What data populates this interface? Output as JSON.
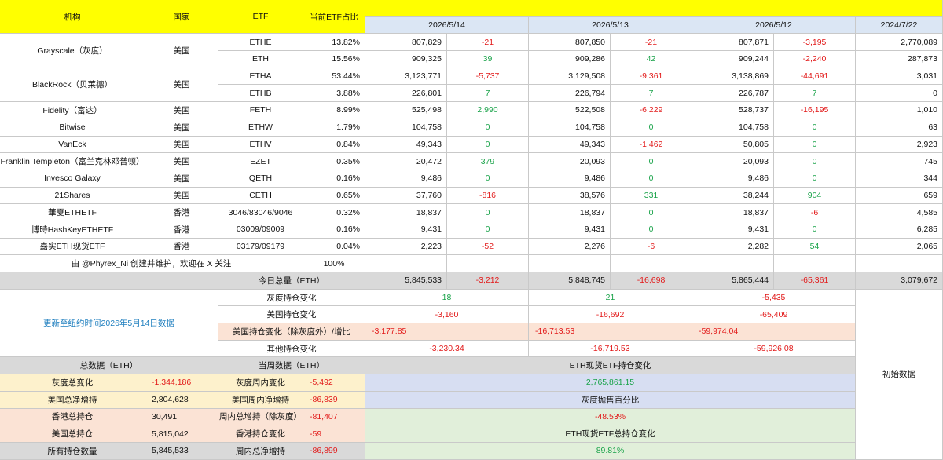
{
  "header": {
    "institution": "机构",
    "country": "国家",
    "etf": "ETF",
    "share": "当前ETF占比",
    "dates": [
      "2026/5/14",
      "2026/5/13",
      "2026/5/12",
      "2024/7/22"
    ]
  },
  "rows": [
    {
      "inst": "Grayscale（灰度）",
      "country": "美国",
      "etf": "ETHE",
      "share": "13.82%",
      "v1": "807,829",
      "c1": "-21",
      "v2": "807,850",
      "c2": "-21",
      "v3": "807,871",
      "c3": "-3,195",
      "init": "2,770,089"
    },
    {
      "inst": "",
      "country": "",
      "etf": "ETH",
      "share": "15.56%",
      "v1": "909,325",
      "c1": "39",
      "v2": "909,286",
      "c2": "42",
      "v3": "909,244",
      "c3": "-2,240",
      "init": "287,873"
    },
    {
      "inst": "BlackRock（贝莱德）",
      "country": "美国",
      "etf": "ETHA",
      "share": "53.44%",
      "v1": "3,123,771",
      "c1": "-5,737",
      "v2": "3,129,508",
      "c2": "-9,361",
      "v3": "3,138,869",
      "c3": "-44,691",
      "init": "3,031"
    },
    {
      "inst": "",
      "country": "",
      "etf": "ETHB",
      "share": "3.88%",
      "v1": "226,801",
      "c1": "7",
      "v2": "226,794",
      "c2": "7",
      "v3": "226,787",
      "c3": "7",
      "init": "0"
    },
    {
      "inst": "Fidelity（富达）",
      "country": "美国",
      "etf": "FETH",
      "share": "8.99%",
      "v1": "525,498",
      "c1": "2,990",
      "v2": "522,508",
      "c2": "-6,229",
      "v3": "528,737",
      "c3": "-16,195",
      "init": "1,010"
    },
    {
      "inst": "Bitwise",
      "country": "美国",
      "etf": "ETHW",
      "share": "1.79%",
      "v1": "104,758",
      "c1": "0",
      "v2": "104,758",
      "c2": "0",
      "v3": "104,758",
      "c3": "0",
      "init": "63"
    },
    {
      "inst": "VanEck",
      "country": "美国",
      "etf": "ETHV",
      "share": "0.84%",
      "v1": "49,343",
      "c1": "0",
      "v2": "49,343",
      "c2": "-1,462",
      "v3": "50,805",
      "c3": "0",
      "init": "2,923"
    },
    {
      "inst": "Franklin Templeton（富兰克林邓普顿）",
      "country": "美国",
      "etf": "EZET",
      "share": "0.35%",
      "v1": "20,472",
      "c1": "379",
      "v2": "20,093",
      "c2": "0",
      "v3": "20,093",
      "c3": "0",
      "init": "745"
    },
    {
      "inst": "Invesco Galaxy",
      "country": "美国",
      "etf": "QETH",
      "share": "0.16%",
      "v1": "9,486",
      "c1": "0",
      "v2": "9,486",
      "c2": "0",
      "v3": "9,486",
      "c3": "0",
      "init": "344"
    },
    {
      "inst": "21Shares",
      "country": "美国",
      "etf": "CETH",
      "share": "0.65%",
      "v1": "37,760",
      "c1": "-816",
      "v2": "38,576",
      "c2": "331",
      "v3": "38,244",
      "c3": "904",
      "init": "659"
    },
    {
      "inst": "華夏ETHETF",
      "country": "香港",
      "etf": "3046/83046/9046",
      "share": "0.32%",
      "v1": "18,837",
      "c1": "0",
      "v2": "18,837",
      "c2": "0",
      "v3": "18,837",
      "c3": "-6",
      "init": "4,585"
    },
    {
      "inst": "博時HashKeyETHETF",
      "country": "香港",
      "etf": "03009/09009",
      "share": "0.16%",
      "v1": "9,431",
      "c1": "0",
      "v2": "9,431",
      "c2": "0",
      "v3": "9,431",
      "c3": "0",
      "init": "6,285"
    },
    {
      "inst": "嘉实ETH现货ETF",
      "country": "香港",
      "etf": "03179/09179",
      "share": "0.04%",
      "v1": "2,223",
      "c1": "-52",
      "v2": "2,276",
      "c2": "-6",
      "v3": "2,282",
      "c3": "54",
      "init": "2,065"
    }
  ],
  "credit": "由 @Phyrex_Ni 创建并维护，欢迎在 X 关注",
  "share_total": "100%",
  "total_row": {
    "label": "今日总量（ETH）",
    "v1": "5,845,533",
    "c1": "-3,212",
    "v2": "5,848,745",
    "c2": "-16,698",
    "v3": "5,865,444",
    "c3": "-65,361",
    "init": "3,079,672"
  },
  "updated": "更新至纽约时间2026年5月14日数据",
  "changes": [
    {
      "label": "灰度持仓变化",
      "d1": "18",
      "d2": "21",
      "d3": "-5,435"
    },
    {
      "label": "美国持仓变化",
      "d1": "-3,160",
      "d2": "-16,692",
      "d3": "-65,409"
    },
    {
      "label": "美国持仓变化（除灰度外）/增比",
      "d1": "-3,177.85",
      "d2": "-16,713.53",
      "d3": "-59,974.04"
    },
    {
      "label": "其他持仓变化",
      "d1": "-3,230.34",
      "d2": "-16,719.53",
      "d3": "-59,926.08"
    }
  ],
  "summary": {
    "total_header": "总数据（ETH）",
    "week_header": "当周数据（ETH）",
    "rows": [
      {
        "a_label": "灰度总变化",
        "a_val": "-1,344,186",
        "b_label": "灰度周内变化",
        "b_val": "-5,492"
      },
      {
        "a_label": "美国总净增持",
        "a_val": "2,804,628",
        "b_label": "美国周内净增持",
        "b_val": "-86,839"
      },
      {
        "a_label": "香港总持仓",
        "a_val": "30,491",
        "b_label": "周内总增持（除灰度）",
        "b_val": "-81,407"
      },
      {
        "a_label": "美国总持仓",
        "a_val": "5,815,042",
        "b_label": "香港持仓变化",
        "b_val": "-59"
      },
      {
        "a_label": "所有持仓数量",
        "a_val": "5,845,533",
        "b_label": "周内总净增持",
        "b_val": "-86,899"
      }
    ],
    "right": [
      {
        "text": "ETH现货ETF持仓变化"
      },
      {
        "text": "2,765,861.15"
      },
      {
        "text": "灰度抛售百分比"
      },
      {
        "text": "-48.53%"
      },
      {
        "text": "ETH现货ETF总持仓变化"
      },
      {
        "text": "89.81%"
      }
    ],
    "init_label": "初始数据"
  }
}
